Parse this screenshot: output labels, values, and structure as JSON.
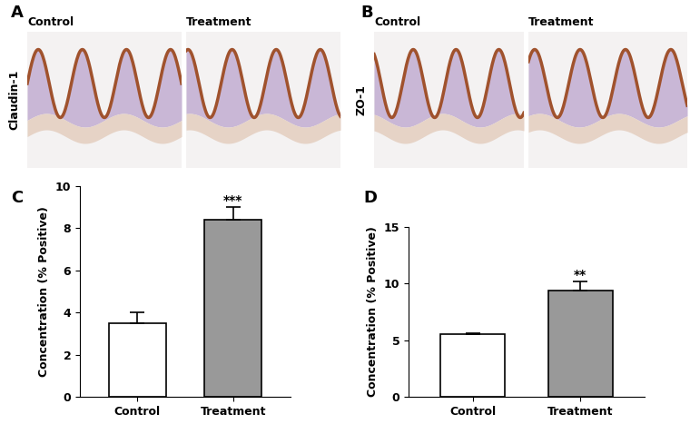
{
  "chart_data": [
    {
      "type": "bar",
      "annotations": [
        {
          "text": "C"
        },
        {
          "text": "***",
          "category": "Treatment"
        }
      ],
      "categories": [
        "Control",
        "Treatment"
      ],
      "values": [
        3.5,
        8.4
      ],
      "errors": [
        0.5,
        0.6
      ],
      "colors": [
        "#ffffff",
        "#999999"
      ],
      "y_label": "Concentration (% Positive)",
      "ylim": [
        0,
        10
      ],
      "yticks": [
        0,
        2,
        4,
        6,
        8,
        10
      ],
      "grid": false
    },
    {
      "type": "bar",
      "annotations": [
        {
          "text": "D"
        },
        {
          "text": "**",
          "category": "Treatment"
        }
      ],
      "categories": [
        "Control",
        "Treatment"
      ],
      "values": [
        5.5,
        9.4
      ],
      "errors": [
        0.1,
        0.8
      ],
      "colors": [
        "#ffffff",
        "#999999"
      ],
      "y_label": "Concentration (% Positive)",
      "ylim": [
        0,
        15
      ],
      "yticks": [
        0,
        5,
        10,
        15
      ],
      "grid": false
    }
  ],
  "images": [
    {
      "label": "A",
      "stain": "Claudin-1",
      "panels": [
        "Control",
        "Treatment"
      ]
    },
    {
      "label": "B",
      "stain": "ZO-1",
      "panels": [
        "Control",
        "Treatment"
      ]
    }
  ]
}
